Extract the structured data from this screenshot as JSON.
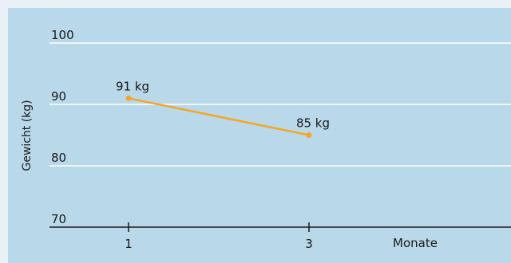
{
  "chart_data": {
    "type": "line",
    "ylabel": "Gewicht (kg)",
    "xlabel": "Monate",
    "yticks": [
      70,
      80,
      90,
      100
    ],
    "xticks": [
      1,
      3
    ],
    "ylim": [
      70,
      100
    ],
    "grid": true,
    "series": [
      {
        "x": [
          1,
          3
        ],
        "values": [
          91,
          85
        ],
        "labels": [
          "91 kg",
          "85 kg"
        ]
      }
    ]
  },
  "colors": {
    "plot_bg": "#b9d8ea",
    "frame_bg": "#e9f1f7",
    "grid": "#ffffff",
    "line": "#f5a623",
    "axis": "#1a1a1a"
  }
}
